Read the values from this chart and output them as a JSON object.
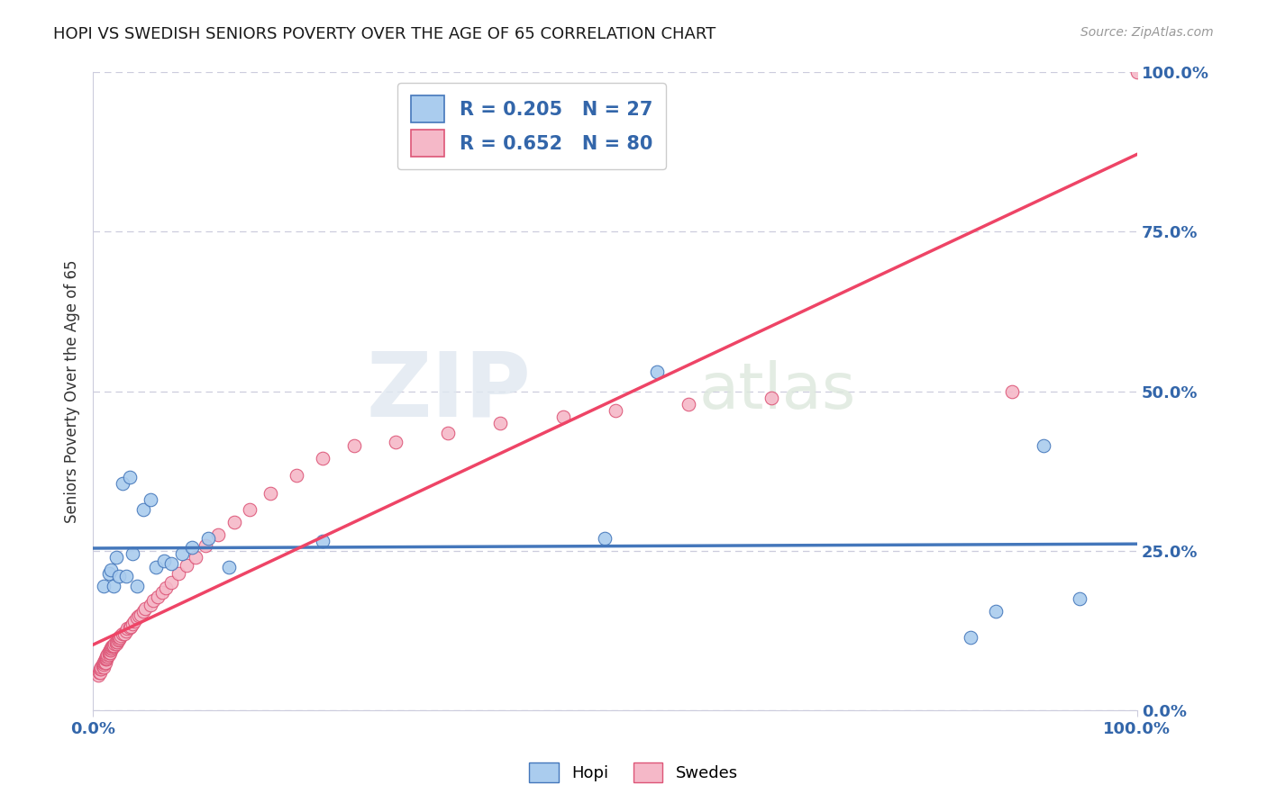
{
  "title": "HOPI VS SWEDISH SENIORS POVERTY OVER THE AGE OF 65 CORRELATION CHART",
  "source": "Source: ZipAtlas.com",
  "ylabel": "Seniors Poverty Over the Age of 65",
  "xlim": [
    0,
    1
  ],
  "ylim": [
    0,
    1
  ],
  "ytick_positions": [
    0.0,
    0.25,
    0.5,
    0.75,
    1.0
  ],
  "ytick_labels": [
    "0.0%",
    "25.0%",
    "50.0%",
    "75.0%",
    "100.0%"
  ],
  "hopi_color": "#aaccee",
  "swedes_color": "#f5b8c8",
  "hopi_edge_color": "#4477bb",
  "swedes_edge_color": "#dd5577",
  "hopi_line_color": "#4477bb",
  "swedes_line_color": "#ee4466",
  "hopi_R": 0.205,
  "hopi_N": 27,
  "swedes_R": 0.652,
  "swedes_N": 80,
  "axis_color": "#3366aa",
  "grid_color": "#ccccdd",
  "watermark_zip": "ZIP",
  "watermark_atlas": "atlas",
  "background_color": "#ffffff",
  "hopi_x": [
    0.01,
    0.015,
    0.017,
    0.02,
    0.022,
    0.025,
    0.028,
    0.032,
    0.035,
    0.038,
    0.042,
    0.048,
    0.055,
    0.06,
    0.068,
    0.075,
    0.085,
    0.095,
    0.11,
    0.13,
    0.22,
    0.49,
    0.54,
    0.84,
    0.865,
    0.91,
    0.945
  ],
  "hopi_y": [
    0.195,
    0.215,
    0.22,
    0.195,
    0.24,
    0.21,
    0.355,
    0.21,
    0.365,
    0.245,
    0.195,
    0.315,
    0.33,
    0.225,
    0.235,
    0.23,
    0.245,
    0.255,
    0.27,
    0.225,
    0.265,
    0.27,
    0.53,
    0.115,
    0.155,
    0.415,
    0.175
  ],
  "swedes_x": [
    0.005,
    0.006,
    0.007,
    0.007,
    0.008,
    0.008,
    0.009,
    0.009,
    0.01,
    0.01,
    0.01,
    0.011,
    0.011,
    0.012,
    0.012,
    0.013,
    0.013,
    0.013,
    0.014,
    0.014,
    0.015,
    0.015,
    0.015,
    0.016,
    0.016,
    0.017,
    0.017,
    0.018,
    0.018,
    0.019,
    0.02,
    0.02,
    0.021,
    0.022,
    0.022,
    0.023,
    0.024,
    0.025,
    0.025,
    0.026,
    0.027,
    0.028,
    0.03,
    0.032,
    0.033,
    0.035,
    0.036,
    0.038,
    0.04,
    0.042,
    0.044,
    0.046,
    0.048,
    0.05,
    0.055,
    0.058,
    0.062,
    0.066,
    0.07,
    0.075,
    0.082,
    0.09,
    0.098,
    0.108,
    0.12,
    0.135,
    0.15,
    0.17,
    0.195,
    0.22,
    0.25,
    0.29,
    0.34,
    0.39,
    0.45,
    0.5,
    0.57,
    0.65,
    0.88,
    1.0
  ],
  "swedes_y": [
    0.055,
    0.06,
    0.06,
    0.065,
    0.065,
    0.068,
    0.07,
    0.072,
    0.068,
    0.072,
    0.075,
    0.075,
    0.078,
    0.075,
    0.08,
    0.08,
    0.082,
    0.085,
    0.085,
    0.088,
    0.088,
    0.09,
    0.092,
    0.09,
    0.095,
    0.095,
    0.098,
    0.098,
    0.1,
    0.1,
    0.1,
    0.102,
    0.105,
    0.105,
    0.108,
    0.108,
    0.11,
    0.112,
    0.115,
    0.115,
    0.118,
    0.12,
    0.12,
    0.125,
    0.128,
    0.13,
    0.132,
    0.135,
    0.14,
    0.145,
    0.148,
    0.15,
    0.155,
    0.16,
    0.165,
    0.172,
    0.178,
    0.185,
    0.192,
    0.2,
    0.215,
    0.228,
    0.24,
    0.258,
    0.275,
    0.295,
    0.315,
    0.34,
    0.368,
    0.395,
    0.415,
    0.42,
    0.435,
    0.45,
    0.46,
    0.47,
    0.48,
    0.49,
    0.5,
    1.0
  ]
}
